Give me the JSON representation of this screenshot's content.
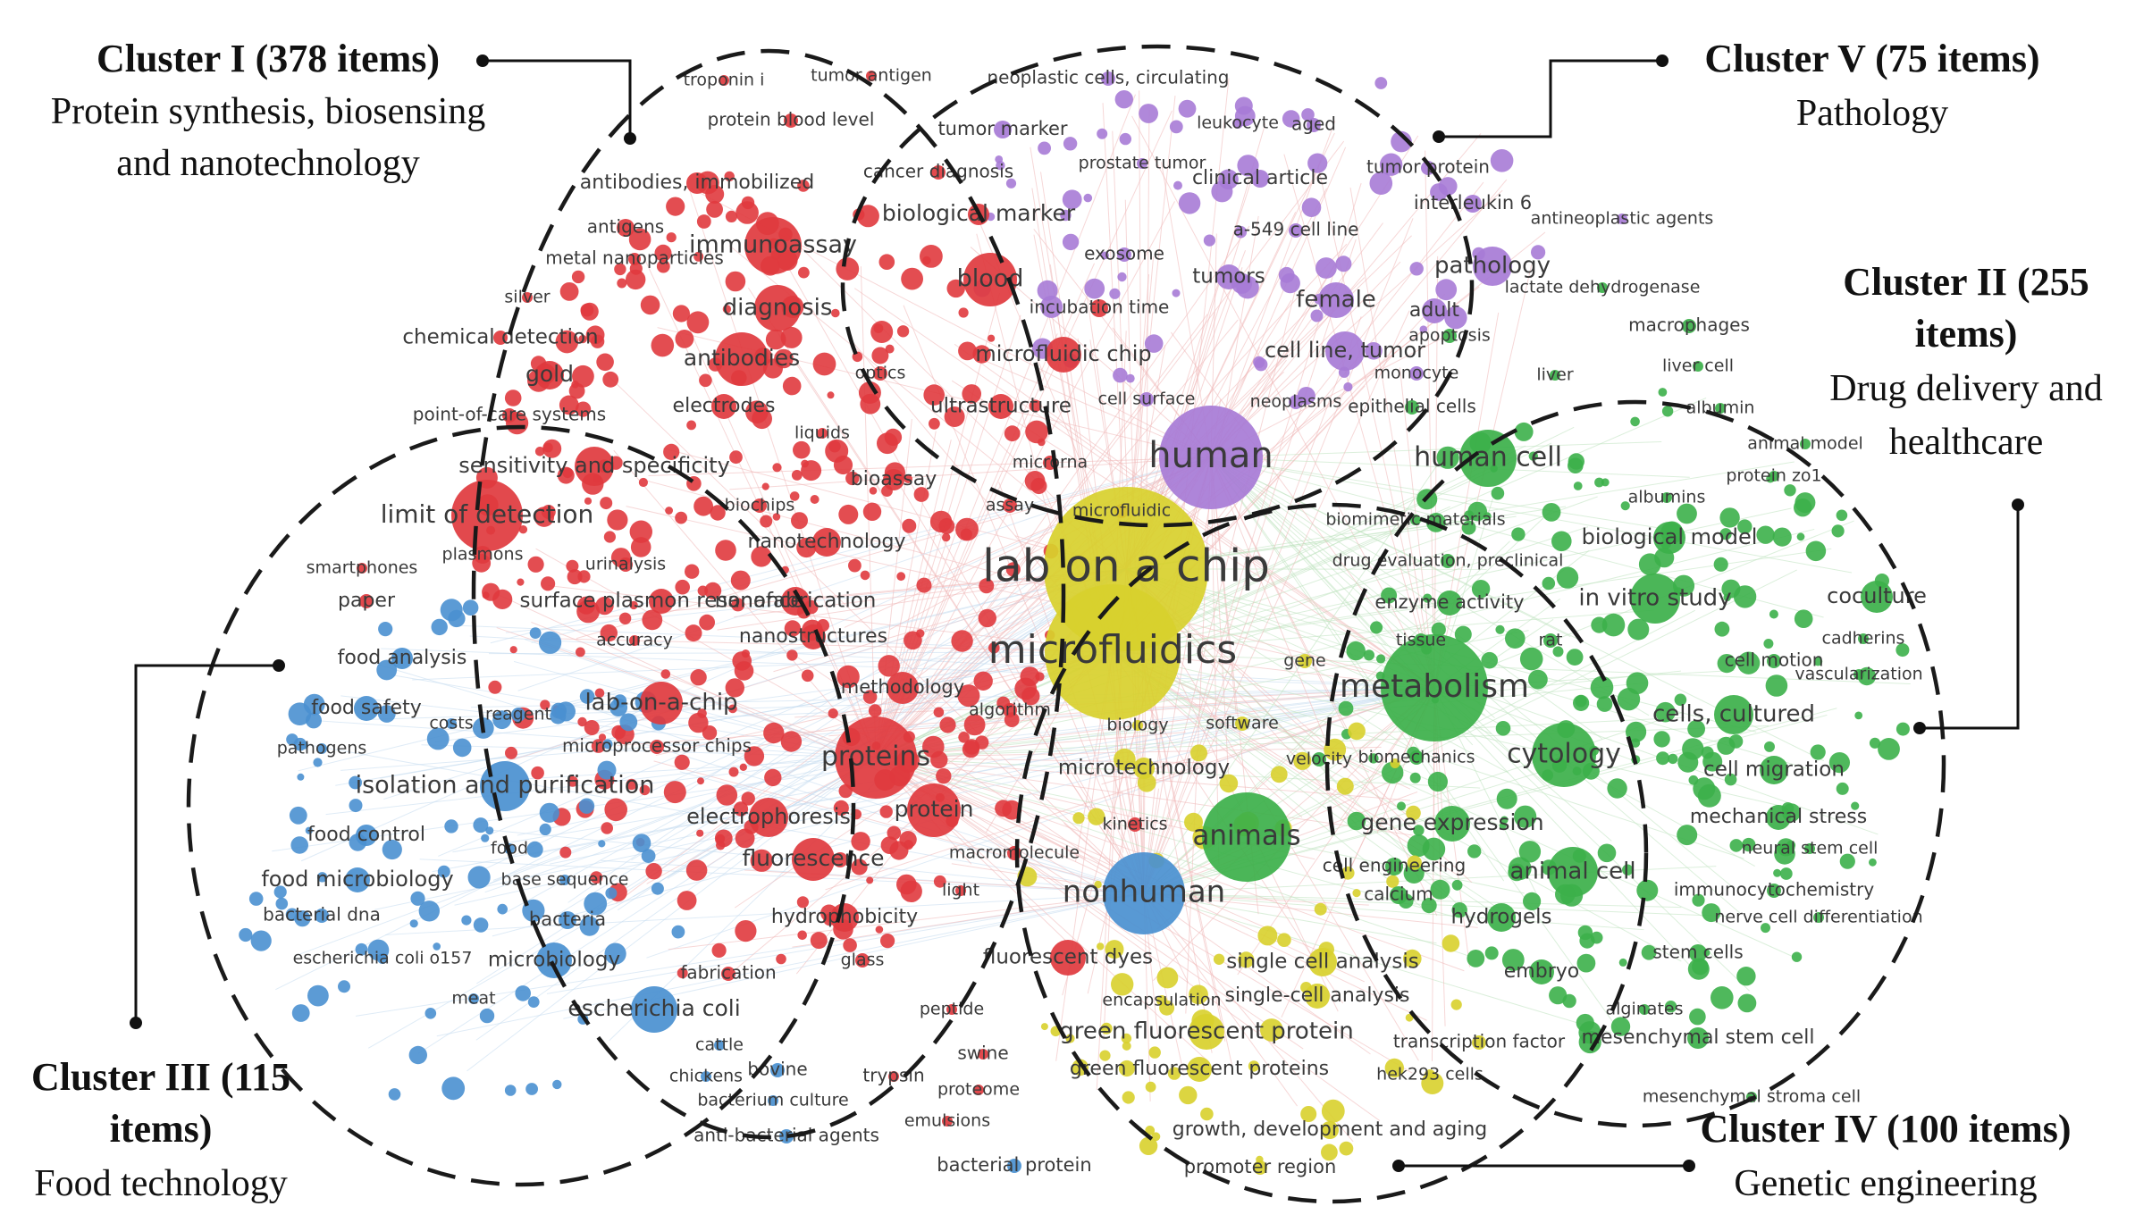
{
  "colors": {
    "red": "#e03a3e",
    "green": "#3cb04a",
    "blue": "#4a90d0",
    "yellow": "#d8d02c",
    "purple": "#a77bd6",
    "link": "#f0b8b8"
  },
  "clusters": [
    {
      "id": "I",
      "title": "Cluster I (378 items)",
      "subtitle": [
        "Protein synthesis, biosensing",
        "and nanotechnology"
      ]
    },
    {
      "id": "V",
      "title": "Cluster V (75 items)",
      "subtitle": [
        "Pathology"
      ]
    },
    {
      "id": "II",
      "title": [
        "Cluster II (255",
        "items)"
      ],
      "subtitle": [
        "Drug delivery and",
        "healthcare"
      ]
    },
    {
      "id": "III",
      "title": [
        "Cluster III (115",
        "items)"
      ],
      "subtitle": [
        "Food technology"
      ]
    },
    {
      "id": "IV",
      "title": "Cluster IV (100 items)",
      "subtitle": [
        "Genetic engineering"
      ]
    }
  ],
  "keywords": {
    "red": [
      "troponin i",
      "tumor antigen",
      "protein blood level",
      "antibodies, immobilized",
      "antigens",
      "immunoassay",
      "metal nanoparticles",
      "silver",
      "diagnosis",
      "chemical detection",
      "antibodies",
      "gold",
      "optics",
      "electrodes",
      "point-of-care systems",
      "liquids",
      "sensitivity and specificity",
      "bioassay",
      "limit of detection",
      "biochips",
      "plasmons",
      "nanotechnology",
      "smartphones",
      "urinalysis",
      "paper",
      "surface plasmon resonance",
      "nanofabrication",
      "accuracy",
      "nanostructures",
      "methodology",
      "lab-on-a-chip",
      "algorithm",
      "microprocessor chips",
      "proteins",
      "protein",
      "electrophoresis",
      "fluorescence",
      "macromolecule",
      "light",
      "hydrophobicity",
      "fabrication",
      "glass",
      "fluorescent dyes",
      "peptide",
      "swine",
      "trypsin",
      "proteome",
      "emulsions",
      "blood",
      "microfluidic chip",
      "ultrastructure",
      "incubation time",
      "biological marker",
      "cancer diagnosis",
      "microrna",
      "assay",
      "microfluidic",
      "kinetics"
    ],
    "blue": [
      "food analysis",
      "food safety",
      "reagent",
      "costs",
      "pathogens",
      "isolation and purification",
      "food control",
      "food",
      "food microbiology",
      "base sequence",
      "bacterial dna",
      "bacteria",
      "escherichia coli o157",
      "microbiology",
      "meat",
      "escherichia coli",
      "cattle",
      "chickens",
      "bovine",
      "bacterium culture",
      "anti-bacterial agents",
      "bacterial protein",
      "nonhuman"
    ],
    "purple": [
      "neoplastic cells, circulating",
      "tumor marker",
      "leukocyte",
      "aged",
      "prostate tumor",
      "clinical article",
      "tumor protein",
      "interleukin 6",
      "antineoplastic agents",
      "exosome",
      "a-549 cell line",
      "tumors",
      "female",
      "pathology",
      "adult",
      "cell line, tumor",
      "cell surface",
      "neoplasms",
      "monocyte",
      "human"
    ],
    "green": [
      "lactate dehydrogenase",
      "macrophages",
      "apoptosis",
      "liver",
      "liver cell",
      "epithelial cells",
      "albumin",
      "human cell",
      "animal model",
      "protein zo1",
      "albumins",
      "biomimetic materials",
      "biological model",
      "drug evaluation, preclinical",
      "enzyme activity",
      "in vitro study",
      "coculture",
      "tissue",
      "rat",
      "cadherins",
      "cell motion",
      "vascularization",
      "metabolism",
      "cells, cultured",
      "cytology",
      "biomechanics",
      "velocity",
      "cell migration",
      "gene expression",
      "mechanical stress",
      "neural stem cell",
      "animals",
      "cell engineering",
      "animal cell",
      "calcium",
      "immunocytochemistry",
      "hydrogels",
      "nerve cell differentiation",
      "stem cells",
      "embryo",
      "alginates",
      "mesenchymal stem cell",
      "mesenchymal stroma cell"
    ],
    "yellow": [
      "lab on a chip",
      "microfluidics",
      "gene",
      "software",
      "biology",
      "microtechnology",
      "single cell analysis",
      "single-cell analysis",
      "encapsulation",
      "green fluorescent protein",
      "green fluorescent proteins",
      "transcription factor",
      "hek293 cells",
      "growth, development and aging",
      "promoter region"
    ]
  }
}
